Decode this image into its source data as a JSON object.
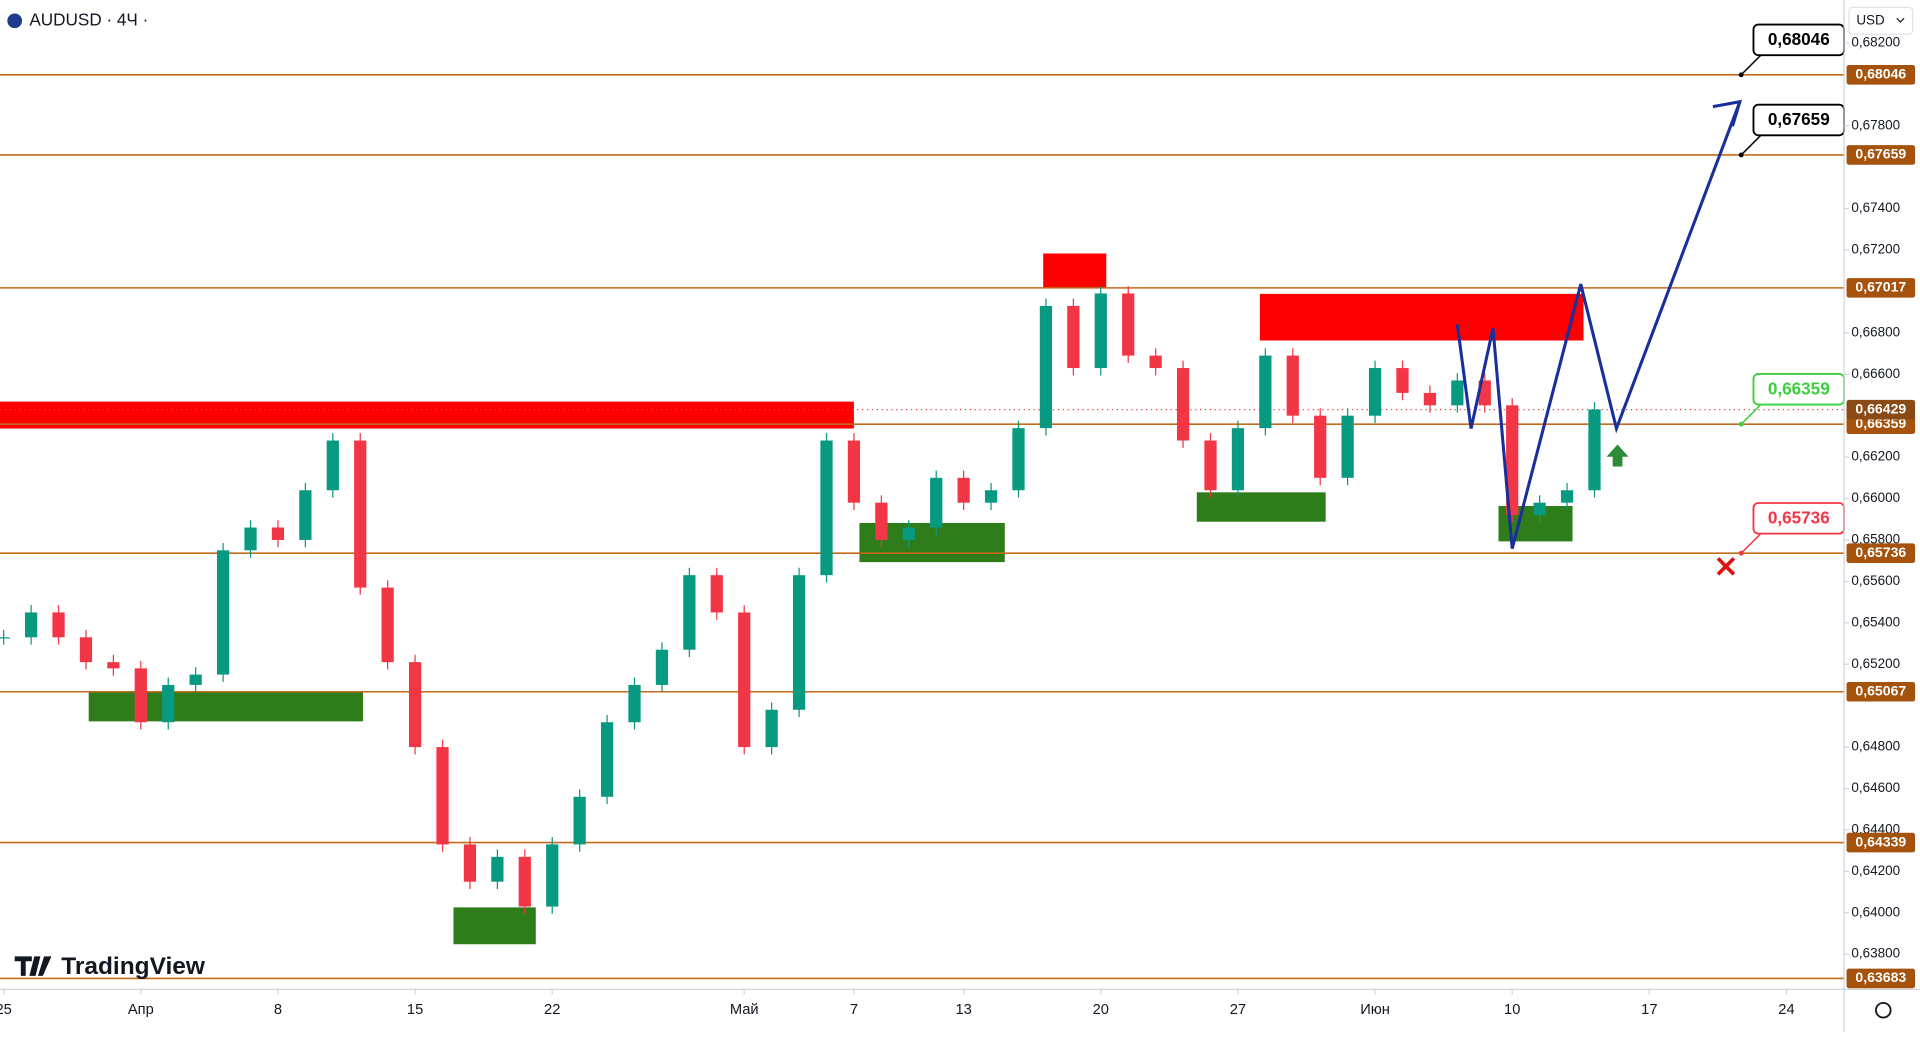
{
  "chart_data": {
    "type": "candlestick",
    "title": "AUDUSD · 4Ч ·",
    "currency": "USD",
    "brand": "TradingView",
    "xlim": [
      -0.134,
      67.1
    ],
    "ylim": [
      0.6363,
      0.68407
    ],
    "xticks": [
      {
        "value": 0,
        "label": "25"
      },
      {
        "value": 5,
        "label": "Апр"
      },
      {
        "value": 10,
        "label": "8"
      },
      {
        "value": 15,
        "label": "15"
      },
      {
        "value": 20,
        "label": "22"
      },
      {
        "value": 27,
        "label": "Май"
      },
      {
        "value": 31,
        "label": "7"
      },
      {
        "value": 35,
        "label": "13"
      },
      {
        "value": 40,
        "label": "20"
      },
      {
        "value": 45,
        "label": "27"
      },
      {
        "value": 50,
        "label": "Июн"
      },
      {
        "value": 55,
        "label": "10"
      },
      {
        "value": 60,
        "label": "17"
      },
      {
        "value": 65,
        "label": "24"
      }
    ],
    "yticks": [
      {
        "value": 0.682,
        "label": "0,68200"
      },
      {
        "value": 0.678,
        "label": "0,67800"
      },
      {
        "value": 0.674,
        "label": "0,67400"
      },
      {
        "value": 0.672,
        "label": "0,67200"
      },
      {
        "value": 0.668,
        "label": "0,66800"
      },
      {
        "value": 0.666,
        "label": "0,66600"
      },
      {
        "value": 0.662,
        "label": "0,66200"
      },
      {
        "value": 0.66,
        "label": "0,66000"
      },
      {
        "value": 0.658,
        "label": "0,65800"
      },
      {
        "value": 0.656,
        "label": "0,65600"
      },
      {
        "value": 0.654,
        "label": "0,65400"
      },
      {
        "value": 0.652,
        "label": "0,65200"
      },
      {
        "value": 0.648,
        "label": "0,64800"
      },
      {
        "value": 0.646,
        "label": "0,64600"
      },
      {
        "value": 0.644,
        "label": "0,64400"
      },
      {
        "value": 0.642,
        "label": "0,64200"
      },
      {
        "value": 0.64,
        "label": "0,64000"
      },
      {
        "value": 0.638,
        "label": "0,63800"
      }
    ],
    "up_color": "#089981",
    "down_color": "#f23645",
    "x": [
      0,
      1,
      2,
      3,
      4,
      5,
      6,
      7,
      8,
      9,
      10,
      11,
      12,
      13,
      14,
      15,
      16,
      17,
      18,
      19,
      20,
      21,
      22,
      23,
      24,
      25,
      26,
      27,
      28,
      29,
      30,
      31,
      32,
      33,
      34,
      35,
      36,
      37,
      38,
      39,
      40,
      41,
      42,
      43,
      44,
      45,
      46,
      47,
      48,
      49,
      50,
      51,
      52,
      53,
      54,
      55,
      56,
      57,
      58
    ],
    "values": [
      0.6533,
      0.6545,
      0.6533,
      0.6521,
      0.6518,
      0.6492,
      0.651,
      0.6515,
      0.6575,
      0.6586,
      0.658,
      0.6604,
      0.6628,
      0.6557,
      0.6521,
      0.648,
      0.6433,
      0.6415,
      0.6427,
      0.6403,
      0.6433,
      0.6456,
      0.6492,
      0.651,
      0.6527,
      0.6563,
      0.6545,
      0.648,
      0.6498,
      0.6563,
      0.6628,
      0.6598,
      0.658,
      0.6586,
      0.661,
      0.6598,
      0.6604,
      0.6634,
      0.6693,
      0.6663,
      0.6699,
      0.6669,
      0.6663,
      0.6628,
      0.6604,
      0.6634,
      0.6669,
      0.664,
      0.661,
      0.664,
      0.6663,
      0.6651,
      0.6645,
      0.6657,
      0.6645,
      0.6592,
      0.6598,
      0.6604,
      0.6643
    ],
    "level_color": "#c46a1b",
    "levels": [
      {
        "value": 0.68046,
        "label": "0,68046"
      },
      {
        "value": 0.67659,
        "label": "0,67659"
      },
      {
        "value": 0.67017,
        "label": "0,67017"
      },
      {
        "value": 0.66359,
        "label": "0,66359"
      },
      {
        "value": 0.65736,
        "label": "0,65736"
      },
      {
        "value": 0.65067,
        "label": "0,65067"
      },
      {
        "value": 0.64339,
        "label": "0,64339"
      },
      {
        "value": 0.63683,
        "label": "0,63683"
      }
    ],
    "last_price": {
      "value": 0.66429,
      "label": "0,66429"
    },
    "callouts": [
      {
        "value": 0.68046,
        "label": "0,68046",
        "color": "#000000"
      },
      {
        "value": 0.67659,
        "label": "0,67659",
        "color": "#000000"
      },
      {
        "value": 0.66359,
        "label": "0,66359",
        "color": "#3ccf3c"
      },
      {
        "value": 0.65736,
        "label": "0,65736",
        "color": "#f23645"
      }
    ],
    "supply_color": "#ff0000",
    "demand_color": "#2e7d1a",
    "supply_zones": [
      {
        "x": [
          -0.134,
          31.0
        ],
        "y": [
          0.66468,
          0.66338
        ]
      },
      {
        "x": [
          37.9,
          40.2
        ],
        "y": [
          0.67183,
          0.67017
        ]
      },
      {
        "x": [
          45.8,
          57.6
        ],
        "y": [
          0.66988,
          0.66763
        ]
      }
    ],
    "demand_zones": [
      {
        "x": [
          3.1,
          13.1
        ],
        "y": [
          0.65066,
          0.64924
        ]
      },
      {
        "x": [
          16.4,
          19.4
        ],
        "y": [
          0.64026,
          0.63848
        ]
      },
      {
        "x": [
          31.2,
          36.5
        ],
        "y": [
          0.65882,
          0.65693
        ]
      },
      {
        "x": [
          43.5,
          48.2
        ],
        "y": [
          0.6603,
          0.65888
        ]
      },
      {
        "x": [
          54.5,
          57.2
        ],
        "y": [
          0.65964,
          0.65793
        ]
      }
    ],
    "projection": {
      "color": "#1a2f9c",
      "x": [
        53.0,
        53.5,
        54.3,
        55.0,
        57.5,
        58.8,
        63.3
      ],
      "y": [
        0.6684,
        0.66338,
        0.66822,
        0.65758,
        0.67035,
        0.66338,
        0.67916
      ]
    }
  }
}
